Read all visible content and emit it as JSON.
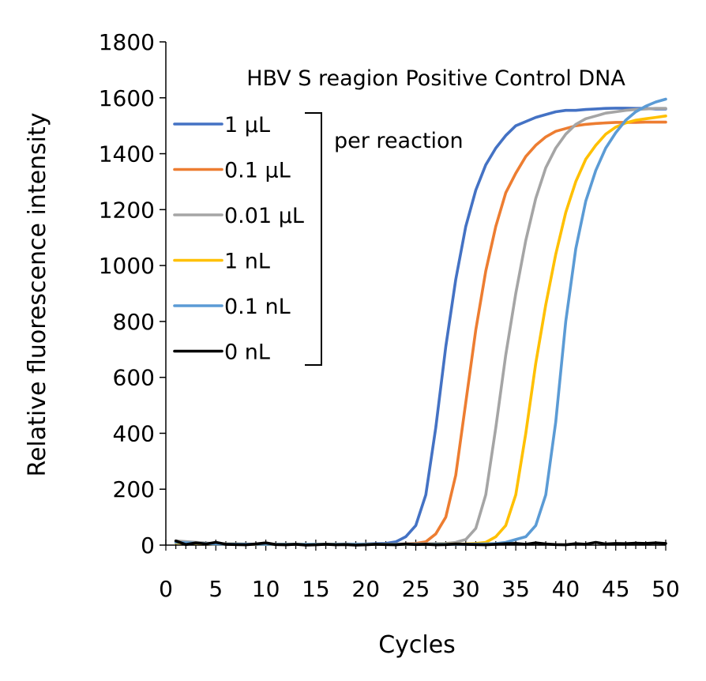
{
  "chart_data": {
    "type": "line",
    "title": "HBV S reagion Positive Control DNA",
    "xlabel": "Cycles",
    "ylabel": "Relative fluorescence intensity",
    "xlim": [
      0,
      50
    ],
    "ylim": [
      0,
      1800
    ],
    "xticks": [
      0,
      5,
      10,
      15,
      20,
      25,
      30,
      35,
      40,
      45,
      50
    ],
    "yticks": [
      0,
      200,
      400,
      600,
      800,
      1000,
      1200,
      1400,
      1600,
      1800
    ],
    "grid": false,
    "legend_position": "top-left",
    "annotation": "per reaction",
    "series": [
      {
        "name": "1 µL",
        "color": "#4472C4",
        "x": [
          1,
          5,
          10,
          15,
          20,
          22,
          23,
          24,
          25,
          26,
          27,
          28,
          29,
          30,
          31,
          32,
          33,
          34,
          35,
          36,
          37,
          38,
          39,
          40,
          41,
          42,
          43,
          44,
          45,
          46,
          47,
          48,
          49,
          50
        ],
        "y": [
          10,
          4,
          3,
          3,
          4,
          6,
          12,
          30,
          70,
          180,
          420,
          710,
          950,
          1140,
          1270,
          1360,
          1420,
          1465,
          1500,
          1515,
          1530,
          1540,
          1550,
          1555,
          1555,
          1558,
          1560,
          1562,
          1563,
          1563,
          1562,
          1562,
          1560,
          1560
        ]
      },
      {
        "name": "0.1 µL",
        "color": "#ED7D31",
        "x": [
          1,
          5,
          10,
          15,
          20,
          24,
          25,
          26,
          27,
          28,
          29,
          30,
          31,
          32,
          33,
          34,
          35,
          36,
          37,
          38,
          39,
          40,
          41,
          42,
          43,
          44,
          45,
          46,
          47,
          48,
          49,
          50
        ],
        "y": [
          12,
          4,
          3,
          3,
          3,
          4,
          6,
          12,
          40,
          100,
          250,
          510,
          770,
          980,
          1140,
          1260,
          1330,
          1390,
          1430,
          1460,
          1480,
          1490,
          1500,
          1505,
          1508,
          1510,
          1512,
          1512,
          1512,
          1513,
          1513,
          1513
        ]
      },
      {
        "name": "0.01 µL",
        "color": "#A5A5A5",
        "x": [
          1,
          5,
          10,
          15,
          20,
          25,
          28,
          29,
          30,
          31,
          32,
          33,
          34,
          35,
          36,
          37,
          38,
          39,
          40,
          41,
          42,
          43,
          44,
          45,
          46,
          47,
          48,
          49,
          50
        ],
        "y": [
          15,
          5,
          3,
          3,
          3,
          4,
          6,
          10,
          20,
          60,
          180,
          420,
          680,
          900,
          1090,
          1240,
          1350,
          1420,
          1470,
          1505,
          1525,
          1535,
          1545,
          1550,
          1555,
          1558,
          1560,
          1562,
          1562
        ]
      },
      {
        "name": "1 nL",
        "color": "#FFC000",
        "x": [
          1,
          5,
          10,
          15,
          20,
          25,
          30,
          31,
          32,
          33,
          34,
          35,
          36,
          37,
          38,
          39,
          40,
          41,
          42,
          43,
          44,
          45,
          46,
          47,
          48,
          49,
          50
        ],
        "y": [
          8,
          4,
          3,
          3,
          3,
          3,
          4,
          6,
          10,
          30,
          70,
          180,
          400,
          650,
          860,
          1040,
          1190,
          1300,
          1380,
          1430,
          1470,
          1495,
          1510,
          1520,
          1525,
          1530,
          1535
        ]
      },
      {
        "name": "0.1 nL",
        "color": "#5B9BD5",
        "x": [
          1,
          5,
          10,
          15,
          20,
          25,
          30,
          33,
          34,
          35,
          36,
          37,
          38,
          39,
          40,
          41,
          42,
          43,
          44,
          45,
          46,
          47,
          48,
          49,
          50
        ],
        "y": [
          10,
          4,
          3,
          3,
          3,
          3,
          3,
          5,
          10,
          20,
          30,
          70,
          180,
          440,
          800,
          1060,
          1230,
          1340,
          1420,
          1475,
          1520,
          1550,
          1570,
          1585,
          1595
        ]
      },
      {
        "name": "0 nL",
        "color": "#000000",
        "x": [
          1,
          2,
          3,
          4,
          5,
          6,
          7,
          8,
          9,
          10,
          11,
          12,
          13,
          14,
          15,
          16,
          17,
          18,
          19,
          20,
          21,
          22,
          23,
          24,
          25,
          26,
          27,
          28,
          29,
          30,
          31,
          32,
          33,
          34,
          35,
          36,
          37,
          38,
          39,
          40,
          41,
          42,
          43,
          44,
          45,
          46,
          47,
          48,
          49,
          50
        ],
        "y": [
          15,
          2,
          8,
          4,
          10,
          3,
          2,
          1,
          4,
          8,
          2,
          1,
          3,
          0,
          1,
          3,
          1,
          2,
          0,
          1,
          3,
          2,
          1,
          4,
          2,
          3,
          1,
          2,
          4,
          3,
          2,
          1,
          3,
          5,
          6,
          3,
          8,
          4,
          2,
          1,
          5,
          3,
          10,
          4,
          6,
          5,
          7,
          6,
          8,
          6
        ]
      }
    ]
  }
}
